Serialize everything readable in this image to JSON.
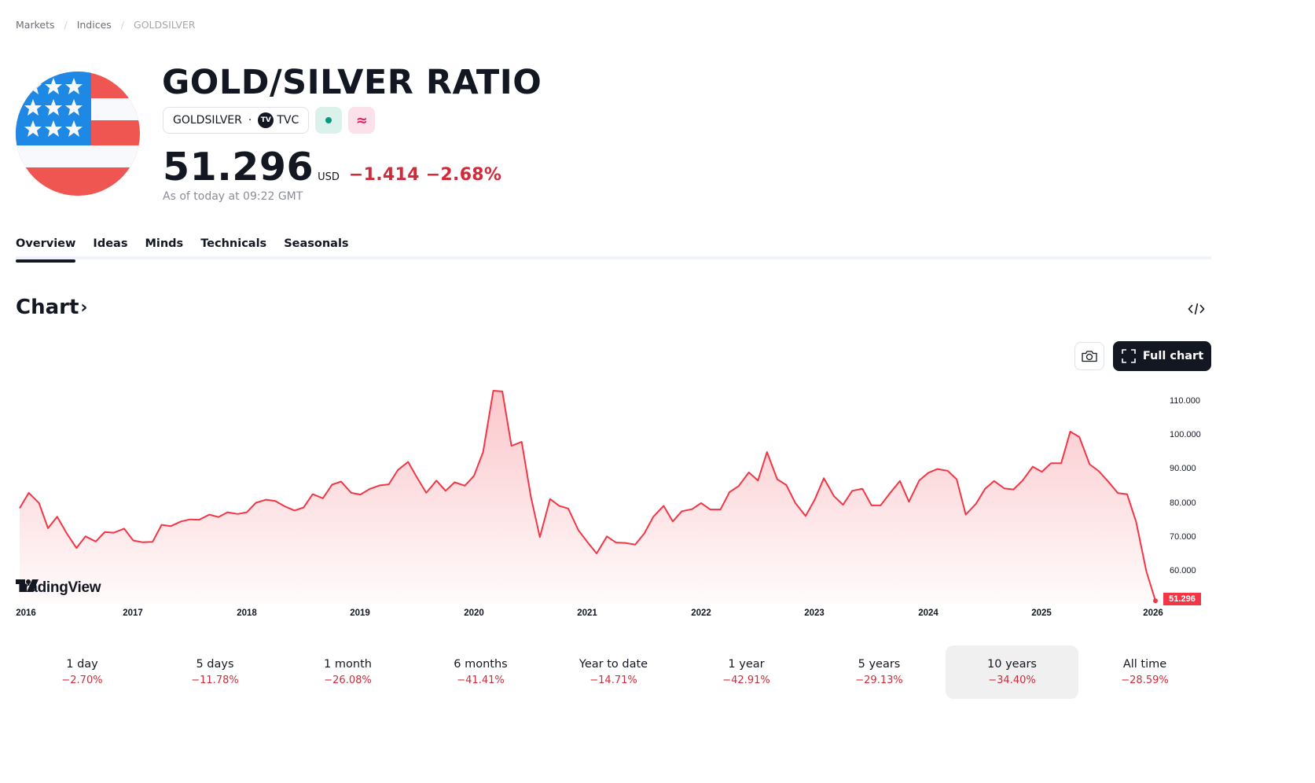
{
  "breadcrumb": {
    "items": [
      {
        "label": "Markets"
      },
      {
        "label": "Indices"
      },
      {
        "label": "GOLDSILVER"
      }
    ],
    "separator": "/"
  },
  "header": {
    "title": "GOLD/SILVER RATIO",
    "symbol": "GOLDSILVER",
    "dot": "·",
    "exchange_badge": "TV",
    "exchange": "TVC",
    "market_status_icon": "market-open-dot-icon",
    "data_status_icon": "delayed-data-icon",
    "data_status_glyph": "≈",
    "flag_icon": "us-flag-icon"
  },
  "quote": {
    "price": "51.296",
    "currency": "USD",
    "change": "−1.414",
    "change_percent": "−2.68%",
    "as_of": "As of today at 09:22 GMT",
    "change_color": "#d12a3a"
  },
  "tabs": [
    {
      "label": "Overview",
      "active": true
    },
    {
      "label": "Ideas",
      "active": false
    },
    {
      "label": "Minds",
      "active": false
    },
    {
      "label": "Technicals",
      "active": false
    },
    {
      "label": "Seasonals",
      "active": false
    }
  ],
  "chart_section": {
    "heading": "Chart",
    "heading_chevron": "›",
    "embed_icon": "code-embed-icon",
    "snapshot_icon": "camera-icon",
    "full_chart_label": "Full chart",
    "full_chart_icon": "fullscreen-icon",
    "watermark": "TradingView"
  },
  "chart_data": {
    "type": "area",
    "title": "GOLD/SILVER RATIO",
    "xlabel": "",
    "ylabel": "",
    "line_color": "#f23645",
    "fill_color": "#f23645",
    "ylim": [
      50,
      114
    ],
    "y_ticks": [
      "110.000",
      "100.000",
      "90.000",
      "80.000",
      "70.000",
      "60.000"
    ],
    "x_ticks": [
      "2016",
      "2017",
      "2018",
      "2019",
      "2020",
      "2021",
      "2022",
      "2023",
      "2024",
      "2025",
      "2026"
    ],
    "last_value_label": "51.296",
    "grid": false,
    "legend": null,
    "x": [
      2016.0,
      2016.08,
      2016.17,
      2016.25,
      2016.33,
      2016.42,
      2016.5,
      2016.58,
      2016.67,
      2016.75,
      2016.83,
      2016.92,
      2017.0,
      2017.08,
      2017.17,
      2017.25,
      2017.33,
      2017.42,
      2017.5,
      2017.58,
      2017.67,
      2017.75,
      2017.83,
      2017.92,
      2018.0,
      2018.08,
      2018.17,
      2018.25,
      2018.33,
      2018.42,
      2018.5,
      2018.58,
      2018.67,
      2018.75,
      2018.83,
      2018.92,
      2019.0,
      2019.08,
      2019.17,
      2019.25,
      2019.33,
      2019.42,
      2019.5,
      2019.58,
      2019.67,
      2019.75,
      2019.83,
      2019.92,
      2020.0,
      2020.08,
      2020.17,
      2020.25,
      2020.33,
      2020.42,
      2020.5,
      2020.58,
      2020.67,
      2020.75,
      2020.83,
      2020.92,
      2021.0,
      2021.08,
      2021.17,
      2021.25,
      2021.33,
      2021.42,
      2021.5,
      2021.58,
      2021.67,
      2021.75,
      2021.83,
      2021.92,
      2022.0,
      2022.08,
      2022.17,
      2022.25,
      2022.33,
      2022.42,
      2022.5,
      2022.58,
      2022.67,
      2022.75,
      2022.83,
      2022.92,
      2023.0,
      2023.08,
      2023.17,
      2023.25,
      2023.33,
      2023.42,
      2023.5,
      2023.58,
      2023.67,
      2023.75,
      2023.83,
      2023.92,
      2024.0,
      2024.08,
      2024.17,
      2024.25,
      2024.33,
      2024.42,
      2024.5,
      2024.58,
      2024.67,
      2024.75,
      2024.83,
      2024.92,
      2025.0,
      2025.08,
      2025.17,
      2025.25,
      2025.33,
      2025.42,
      2025.5,
      2025.58,
      2025.67,
      2025.75,
      2025.83,
      2025.92,
      2026.0
    ],
    "values": [
      78.5,
      83.0,
      80.0,
      72.6,
      76.0,
      70.8,
      66.8,
      70.2,
      68.7,
      71.5,
      71.3,
      72.5,
      69.0,
      68.5,
      68.6,
      73.6,
      73.2,
      74.6,
      75.2,
      75.1,
      76.6,
      75.9,
      77.3,
      76.8,
      77.3,
      80.1,
      81.0,
      80.6,
      79.1,
      77.8,
      78.7,
      82.6,
      81.4,
      85.4,
      86.3,
      83.0,
      82.5,
      84.1,
      85.2,
      85.5,
      89.7,
      92.1,
      87.4,
      83.0,
      86.6,
      83.6,
      86.1,
      85.1,
      88.0,
      95.0,
      113.0,
      112.8,
      96.8,
      98.0,
      82.0,
      70.0,
      81.2,
      79.2,
      78.4,
      72.0,
      68.5,
      65.2,
      70.2,
      68.4,
      68.3,
      67.8,
      71.1,
      76.0,
      79.2,
      74.6,
      77.6,
      78.2,
      80.0,
      78.1,
      78.1,
      83.2,
      85.0,
      89.0,
      86.6,
      95.0,
      87.0,
      85.3,
      80.0,
      76.2,
      81.0,
      87.3,
      82.0,
      79.5,
      83.6,
      84.2,
      79.3,
      79.3,
      83.2,
      86.5,
      80.4,
      86.6,
      88.9,
      90.0,
      89.5,
      87.0,
      76.6,
      79.8,
      84.2,
      86.5,
      84.3,
      84.0,
      86.6,
      90.7,
      89.2,
      91.7,
      91.7,
      101.0,
      99.4,
      91.4,
      89.4,
      86.5,
      82.9,
      82.6,
      74.5,
      60.0,
      51.3
    ],
    "last_value": 51.296
  },
  "performance": [
    {
      "label": "1 day",
      "value": "−2.70%",
      "active": false
    },
    {
      "label": "5 days",
      "value": "−11.78%",
      "active": false
    },
    {
      "label": "1 month",
      "value": "−26.08%",
      "active": false
    },
    {
      "label": "6 months",
      "value": "−41.41%",
      "active": false
    },
    {
      "label": "Year to date",
      "value": "−14.71%",
      "active": false
    },
    {
      "label": "1 year",
      "value": "−42.91%",
      "active": false
    },
    {
      "label": "5 years",
      "value": "−29.13%",
      "active": false
    },
    {
      "label": "10 years",
      "value": "−34.40%",
      "active": true
    },
    {
      "label": "All time",
      "value": "−28.59%",
      "active": false
    }
  ]
}
